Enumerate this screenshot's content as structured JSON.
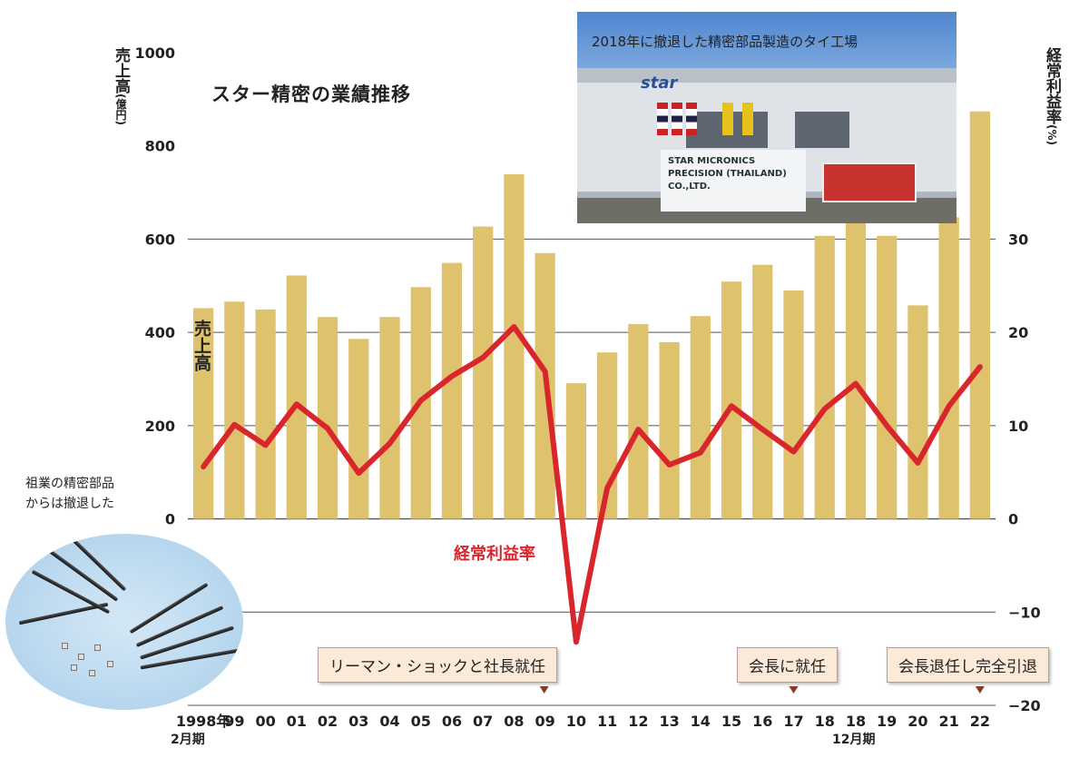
{
  "chart_data": {
    "type": "bar",
    "title": "スター精密の業績推移",
    "categories": [
      "1998年",
      "99",
      "00",
      "01",
      "02",
      "03",
      "04",
      "05",
      "06",
      "07",
      "08",
      "09",
      "10",
      "11",
      "12",
      "13",
      "14",
      "15",
      "16",
      "17",
      "18",
      "18",
      "19",
      "20",
      "21",
      "22"
    ],
    "category_sub_labels": {
      "first": "2月期",
      "after_change": "12月期"
    },
    "series": [
      {
        "name": "売上高",
        "type": "bar",
        "axis": "left",
        "color": "#dfc26e",
        "values": [
          452,
          466,
          449,
          522,
          433,
          386,
          433,
          497,
          549,
          627,
          739,
          570,
          291,
          357,
          418,
          379,
          435,
          509,
          545,
          490,
          607,
          660,
          607,
          458,
          647,
          874
        ]
      },
      {
        "name": "経常利益率",
        "type": "line",
        "axis": "right",
        "color": "#d9262c",
        "values": [
          5.6,
          10.1,
          7.9,
          12.3,
          9.7,
          4.9,
          8.1,
          12.7,
          15.3,
          17.3,
          20.6,
          15.8,
          -13.2,
          3.3,
          9.6,
          5.8,
          7.1,
          12.1,
          9.6,
          7.2,
          11.8,
          14.5,
          10.0,
          6.0,
          12.1,
          16.3
        ]
      }
    ],
    "y_left": {
      "label": "売上高",
      "unit": "(億円)",
      "ticks": [
        0,
        200,
        400,
        600,
        800,
        1000
      ],
      "ylim": [
        -400,
        1000
      ]
    },
    "y_right": {
      "label": "経常利益率",
      "unit": "(%)",
      "ticks": [
        -20,
        -10,
        0,
        10,
        20,
        30
      ],
      "ylim": [
        -20,
        50
      ]
    },
    "grid": true,
    "series_labels": {
      "sales": "売上高",
      "margin": "経常利益率"
    }
  },
  "photo": {
    "caption": "2018年に撤退した精密部品製造のタイ工場",
    "logo_text": "star",
    "sign_line1": "STAR MICRONICS",
    "sign_line2": "PRECISION (THAILAND) CO.,LTD."
  },
  "note": {
    "line1": "祖業の精密部品",
    "line2": "からは撤退した"
  },
  "events": [
    {
      "label": "リーマン・ショックと社長就任"
    },
    {
      "label": "会長に就任"
    },
    {
      "label": "会長退任し完全引退"
    }
  ],
  "colors": {
    "bar": "#dfc26e",
    "line": "#d9262c",
    "marker": "#8a3a22"
  }
}
